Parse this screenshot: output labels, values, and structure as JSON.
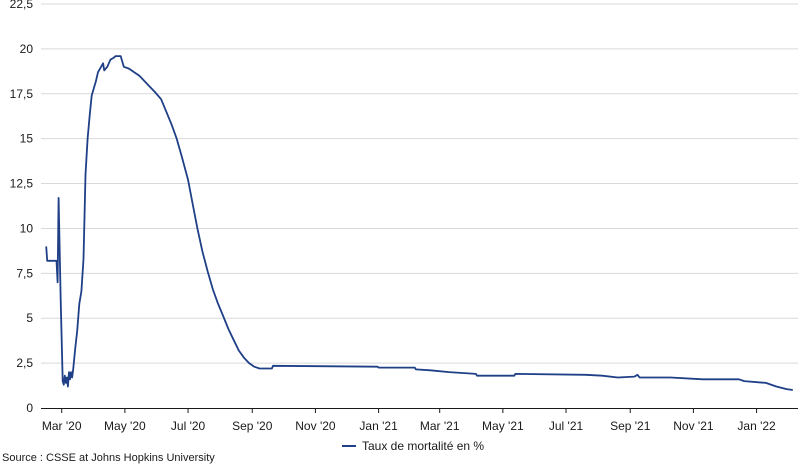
{
  "chart_data": {
    "type": "line",
    "title": "",
    "xlabel": "",
    "ylabel": "",
    "ylim": [
      0,
      22.5
    ],
    "yticks": [
      "0",
      "2,5",
      "5",
      "7,5",
      "10",
      "12,5",
      "15",
      "17,5",
      "20",
      "22,5"
    ],
    "x_tick_labels": [
      "Mar '20",
      "May '20",
      "Jul '20",
      "Sep '20",
      "Nov '20",
      "Jan '21",
      "Mar '21",
      "May '21",
      "Jul '21",
      "Sep '21",
      "Nov '21",
      "Jan '22"
    ],
    "grid": "horizontal",
    "legend_position": "bottom",
    "color": "#1f3f87",
    "series": [
      {
        "name": "Taux de mortalité en %",
        "points": [
          [
            "2020-02-15",
            9.0
          ],
          [
            "2020-02-16",
            8.2
          ],
          [
            "2020-02-25",
            8.2
          ],
          [
            "2020-02-26",
            7.0
          ],
          [
            "2020-02-27",
            11.7
          ],
          [
            "2020-02-29",
            6.0
          ],
          [
            "2020-03-02",
            1.5
          ],
          [
            "2020-03-03",
            1.3
          ],
          [
            "2020-03-04",
            1.8
          ],
          [
            "2020-03-05",
            1.4
          ],
          [
            "2020-03-06",
            1.7
          ],
          [
            "2020-03-07",
            1.2
          ],
          [
            "2020-03-08",
            2.0
          ],
          [
            "2020-03-09",
            1.6
          ],
          [
            "2020-03-10",
            2.0
          ],
          [
            "2020-03-11",
            1.7
          ],
          [
            "2020-03-12",
            2.1
          ],
          [
            "2020-03-14",
            3.3
          ],
          [
            "2020-03-16",
            4.3
          ],
          [
            "2020-03-18",
            5.8
          ],
          [
            "2020-03-20",
            6.5
          ],
          [
            "2020-03-22",
            8.3
          ],
          [
            "2020-03-24",
            13.0
          ],
          [
            "2020-03-26",
            15.0
          ],
          [
            "2020-03-28",
            16.3
          ],
          [
            "2020-03-30",
            17.4
          ],
          [
            "2020-04-01",
            17.8
          ],
          [
            "2020-04-03",
            18.2
          ],
          [
            "2020-04-05",
            18.7
          ],
          [
            "2020-04-08",
            19.0
          ],
          [
            "2020-04-10",
            19.2
          ],
          [
            "2020-04-11",
            18.8
          ],
          [
            "2020-04-14",
            19.0
          ],
          [
            "2020-04-17",
            19.4
          ],
          [
            "2020-04-20",
            19.5
          ],
          [
            "2020-04-22",
            19.6
          ],
          [
            "2020-04-27",
            19.6
          ],
          [
            "2020-04-30",
            19.0
          ],
          [
            "2020-05-05",
            18.9
          ],
          [
            "2020-05-10",
            18.7
          ],
          [
            "2020-05-15",
            18.5
          ],
          [
            "2020-05-20",
            18.2
          ],
          [
            "2020-05-25",
            17.9
          ],
          [
            "2020-05-30",
            17.6
          ],
          [
            "2020-06-05",
            17.2
          ],
          [
            "2020-06-10",
            16.5
          ],
          [
            "2020-06-15",
            15.8
          ],
          [
            "2020-06-20",
            15.0
          ],
          [
            "2020-06-25",
            14.0
          ],
          [
            "2020-07-01",
            12.7
          ],
          [
            "2020-07-05",
            11.5
          ],
          [
            "2020-07-10",
            10.0
          ],
          [
            "2020-07-15",
            8.7
          ],
          [
            "2020-07-20",
            7.6
          ],
          [
            "2020-07-25",
            6.6
          ],
          [
            "2020-07-30",
            5.8
          ],
          [
            "2020-08-04",
            5.1
          ],
          [
            "2020-08-09",
            4.4
          ],
          [
            "2020-08-14",
            3.8
          ],
          [
            "2020-08-19",
            3.2
          ],
          [
            "2020-08-24",
            2.8
          ],
          [
            "2020-08-29",
            2.5
          ],
          [
            "2020-09-03",
            2.3
          ],
          [
            "2020-09-08",
            2.2
          ],
          [
            "2020-09-20",
            2.2
          ],
          [
            "2020-09-21",
            2.35
          ],
          [
            "2020-12-31",
            2.3
          ],
          [
            "2021-01-01",
            2.25
          ],
          [
            "2021-02-05",
            2.25
          ],
          [
            "2021-02-06",
            2.15
          ],
          [
            "2021-02-20",
            2.1
          ],
          [
            "2021-03-10",
            2.0
          ],
          [
            "2021-04-05",
            1.9
          ],
          [
            "2021-04-06",
            1.8
          ],
          [
            "2021-05-12",
            1.8
          ],
          [
            "2021-05-13",
            1.9
          ],
          [
            "2021-07-20",
            1.85
          ],
          [
            "2021-08-05",
            1.8
          ],
          [
            "2021-08-20",
            1.7
          ],
          [
            "2021-09-05",
            1.75
          ],
          [
            "2021-09-08",
            1.85
          ],
          [
            "2021-09-10",
            1.7
          ],
          [
            "2021-10-10",
            1.7
          ],
          [
            "2021-11-10",
            1.6
          ],
          [
            "2021-12-15",
            1.6
          ],
          [
            "2021-12-20",
            1.5
          ],
          [
            "2022-01-10",
            1.4
          ],
          [
            "2022-01-20",
            1.2
          ],
          [
            "2022-01-30",
            1.05
          ],
          [
            "2022-02-05",
            1.0
          ]
        ]
      }
    ]
  },
  "legend": {
    "label": "Taux de mortalité en %"
  },
  "source": "Source : CSSE at Johns Hopkins University"
}
